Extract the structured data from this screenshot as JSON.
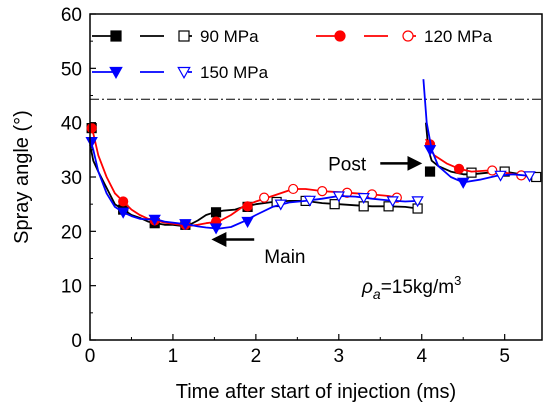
{
  "chart_data": {
    "type": "line",
    "xlabel": "Time after start of injection (ms)",
    "ylabel": "Spray angle (°)",
    "xlim": [
      0,
      5.45
    ],
    "ylim": [
      0,
      60
    ],
    "x_ticks": [
      0,
      1,
      2,
      3,
      4,
      5
    ],
    "y_ticks": [
      0,
      10,
      20,
      30,
      40,
      50,
      60
    ],
    "reference_line": {
      "y": 44.3,
      "style": "dash-dot"
    },
    "series": [
      {
        "name": "90 MPa",
        "color": "#000000",
        "filled_marker": "square",
        "open_marker": "square",
        "main": [
          [
            0.0,
            36
          ],
          [
            0.04,
            33
          ],
          [
            0.1,
            31
          ],
          [
            0.2,
            28
          ],
          [
            0.3,
            25
          ],
          [
            0.4,
            24
          ],
          [
            0.5,
            23
          ],
          [
            0.6,
            22.5
          ],
          [
            0.7,
            21.8
          ],
          [
            0.8,
            21.5
          ],
          [
            0.9,
            21.2
          ],
          [
            1.0,
            21.2
          ],
          [
            1.1,
            21.0
          ],
          [
            1.2,
            21.2
          ],
          [
            1.3,
            22
          ],
          [
            1.4,
            23
          ],
          [
            1.5,
            23.5
          ],
          [
            1.6,
            23.8
          ],
          [
            1.75,
            24
          ],
          [
            1.85,
            24.5
          ],
          [
            2.0,
            25
          ],
          [
            2.2,
            25.4
          ],
          [
            2.4,
            25.6
          ],
          [
            2.6,
            25.6
          ],
          [
            2.8,
            25.2
          ],
          [
            3.0,
            25.0
          ],
          [
            3.2,
            24.8
          ],
          [
            3.4,
            24.6
          ],
          [
            3.6,
            24.6
          ],
          [
            3.8,
            24.5
          ],
          [
            3.95,
            24.2
          ]
        ],
        "post": [
          [
            4.05,
            40
          ],
          [
            4.08,
            35
          ],
          [
            4.12,
            33
          ],
          [
            4.2,
            32
          ],
          [
            4.35,
            31
          ],
          [
            4.5,
            30.5
          ],
          [
            4.6,
            30.5
          ],
          [
            4.8,
            30.8
          ],
          [
            5.0,
            31
          ],
          [
            5.2,
            30.5
          ],
          [
            5.38,
            30
          ]
        ],
        "filled_points": [
          [
            0.02,
            39
          ],
          [
            0.4,
            24
          ],
          [
            0.78,
            21.5
          ],
          [
            1.15,
            21.2
          ],
          [
            1.52,
            23.5
          ],
          [
            1.9,
            24.5
          ],
          [
            4.1,
            31
          ]
        ],
        "open_points": [
          [
            2.25,
            25.4
          ],
          [
            2.6,
            25.6
          ],
          [
            2.95,
            25.0
          ],
          [
            3.3,
            24.6
          ],
          [
            3.6,
            24.6
          ],
          [
            3.95,
            24.2
          ],
          [
            4.6,
            30.8
          ],
          [
            5.0,
            31
          ],
          [
            5.38,
            30
          ]
        ]
      },
      {
        "name": "120 MPa",
        "color": "#ff0000",
        "filled_marker": "circle",
        "open_marker": "circle",
        "main": [
          [
            0.0,
            39
          ],
          [
            0.04,
            38
          ],
          [
            0.1,
            34
          ],
          [
            0.2,
            30
          ],
          [
            0.3,
            27
          ],
          [
            0.4,
            25.5
          ],
          [
            0.5,
            24
          ],
          [
            0.6,
            23
          ],
          [
            0.7,
            22.3
          ],
          [
            0.8,
            22
          ],
          [
            0.9,
            21.6
          ],
          [
            1.0,
            21.4
          ],
          [
            1.1,
            21.2
          ],
          [
            1.2,
            21.0
          ],
          [
            1.3,
            21.2
          ],
          [
            1.4,
            21.5
          ],
          [
            1.55,
            21.8
          ],
          [
            1.7,
            23
          ],
          [
            1.85,
            24.6
          ],
          [
            2.0,
            25.5
          ],
          [
            2.2,
            26.5
          ],
          [
            2.45,
            27.8
          ],
          [
            2.6,
            27.8
          ],
          [
            2.8,
            27.4
          ],
          [
            3.0,
            27.2
          ],
          [
            3.2,
            27
          ],
          [
            3.4,
            26.8
          ],
          [
            3.6,
            26.5
          ],
          [
            3.7,
            26.2
          ]
        ],
        "post": [
          [
            4.05,
            37
          ],
          [
            4.08,
            36
          ],
          [
            4.15,
            34
          ],
          [
            4.3,
            32.5
          ],
          [
            4.45,
            31.5
          ],
          [
            4.6,
            31
          ],
          [
            4.8,
            31.2
          ],
          [
            5.0,
            30.8
          ],
          [
            5.2,
            30.3
          ],
          [
            5.3,
            30
          ]
        ],
        "filled_points": [
          [
            0.02,
            39
          ],
          [
            0.4,
            25.5
          ],
          [
            0.78,
            22
          ],
          [
            1.15,
            21.2
          ],
          [
            1.52,
            21.8
          ],
          [
            1.9,
            24.6
          ],
          [
            4.1,
            36
          ],
          [
            4.45,
            31.5
          ]
        ],
        "open_points": [
          [
            2.1,
            26.2
          ],
          [
            2.45,
            27.8
          ],
          [
            2.8,
            27.4
          ],
          [
            3.1,
            27.1
          ],
          [
            3.4,
            26.8
          ],
          [
            3.7,
            26.2
          ],
          [
            4.85,
            31.2
          ],
          [
            5.2,
            30.3
          ]
        ]
      },
      {
        "name": "150 MPa",
        "color": "#0000ff",
        "filled_marker": "triangle-down",
        "open_marker": "triangle-down",
        "main": [
          [
            0.0,
            37
          ],
          [
            0.04,
            35
          ],
          [
            0.1,
            31
          ],
          [
            0.2,
            27
          ],
          [
            0.3,
            24.5
          ],
          [
            0.4,
            23.5
          ],
          [
            0.5,
            22.8
          ],
          [
            0.6,
            22.3
          ],
          [
            0.7,
            22.2
          ],
          [
            0.8,
            22.2
          ],
          [
            0.9,
            21.8
          ],
          [
            1.0,
            21.6
          ],
          [
            1.1,
            21.4
          ],
          [
            1.2,
            21.2
          ],
          [
            1.3,
            20.9
          ],
          [
            1.4,
            20.7
          ],
          [
            1.55,
            20.5
          ],
          [
            1.7,
            20.8
          ],
          [
            1.85,
            21.8
          ],
          [
            2.0,
            23
          ],
          [
            2.2,
            24.5
          ],
          [
            2.4,
            25.3
          ],
          [
            2.6,
            25.6
          ],
          [
            2.8,
            26
          ],
          [
            3.0,
            26.5
          ],
          [
            3.2,
            26.4
          ],
          [
            3.4,
            26
          ],
          [
            3.6,
            25.7
          ],
          [
            3.8,
            25.5
          ],
          [
            3.95,
            25.6
          ]
        ],
        "post": [
          [
            4.02,
            48
          ],
          [
            4.06,
            40
          ],
          [
            4.12,
            35
          ],
          [
            4.2,
            32
          ],
          [
            4.35,
            30
          ],
          [
            4.5,
            29
          ],
          [
            4.7,
            29.5
          ],
          [
            4.9,
            30.2
          ],
          [
            5.1,
            30.5
          ],
          [
            5.3,
            30.2
          ]
        ],
        "filled_points": [
          [
            0.02,
            36.5
          ],
          [
            0.4,
            23.5
          ],
          [
            0.78,
            22.2
          ],
          [
            1.15,
            21.4
          ],
          [
            1.52,
            20.6
          ],
          [
            1.9,
            21.8
          ],
          [
            4.1,
            35
          ],
          [
            4.5,
            29
          ]
        ],
        "open_points": [
          [
            2.3,
            25
          ],
          [
            2.65,
            25.7
          ],
          [
            3.0,
            26.5
          ],
          [
            3.3,
            26.2
          ],
          [
            3.65,
            25.6
          ],
          [
            3.95,
            25.6
          ],
          [
            4.95,
            30.3
          ],
          [
            5.3,
            30.2
          ]
        ]
      }
    ],
    "annotations": [
      {
        "text": "Main",
        "x": 2.35,
        "y": 15.5,
        "arrow_from": [
          1.98,
          18.5
        ],
        "arrow_to": [
          1.5,
          18.5
        ]
      },
      {
        "text": "Post",
        "x": 3.1,
        "y": 32.5,
        "arrow_from": [
          3.5,
          32.5
        ],
        "arrow_to": [
          3.97,
          32.5
        ]
      }
    ],
    "density_label": {
      "symbol": "ρ",
      "subscript": "a",
      "value": "=15kg/m",
      "superscript": "3"
    }
  }
}
